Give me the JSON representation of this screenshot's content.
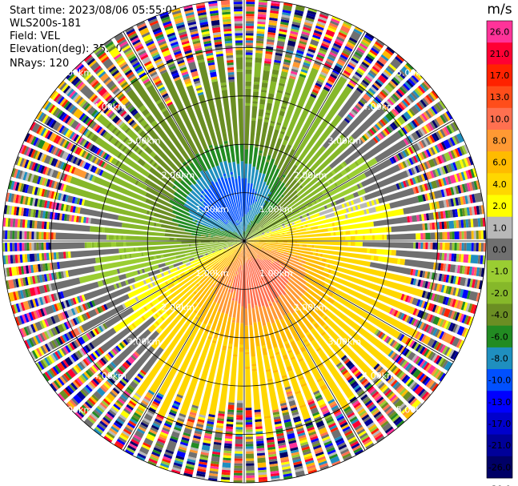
{
  "header": {
    "start_time": "Start time: 2023/08/06 05:55:01",
    "instrument": "WLS200s-181",
    "field": "Field: VEL",
    "elevation": "Elevation(deg): 35.30",
    "nrays": "NRays: 120"
  },
  "chart_data": {
    "type": "heatmap",
    "projection": "polar PPI",
    "title": "",
    "field": "VEL",
    "units": "m/s",
    "n_rays": 120,
    "elevation_deg": 35.3,
    "max_range_km": 5.0,
    "range_rings_km": [
      1.0,
      2.0,
      3.0,
      4.0,
      5.0
    ],
    "range_labels": [
      "1.00km",
      "2.00km",
      "3.00km",
      "4.00km",
      "5.00km"
    ],
    "colorbar": {
      "unit_label": "m/s",
      "levels": [
        "26.0",
        "21.0",
        "17.0",
        "13.0",
        "10.0",
        "8.0",
        "6.0",
        "4.0",
        "2.0",
        "1.0",
        "0.0",
        "-1.0",
        "-2.0",
        "-4.0",
        "-6.0",
        "-8.0",
        "-10.0",
        "-13.0",
        "-17.0",
        "-21.0",
        "-26.0",
        "-30.0"
      ],
      "colors": [
        "#ff3399",
        "#ff0033",
        "#ff2200",
        "#ff4d1a",
        "#ff7050",
        "#ff9933",
        "#ffbb00",
        "#ffd700",
        "#ffff00",
        "#b8b8b8",
        "#707070",
        "#9acd32",
        "#86b82a",
        "#6b8e23",
        "#228b22",
        "#1f8fbf",
        "#0050ff",
        "#0000ff",
        "#0000cc",
        "#000099",
        "#000066"
      ]
    },
    "velocity_pattern": {
      "receding_azimuth_deg": 160,
      "approaching_azimuth_deg": 340,
      "peak_receding_ms": 8.0,
      "peak_approaching_ms": -10.0,
      "noise_onset_km": 3.6
    }
  }
}
